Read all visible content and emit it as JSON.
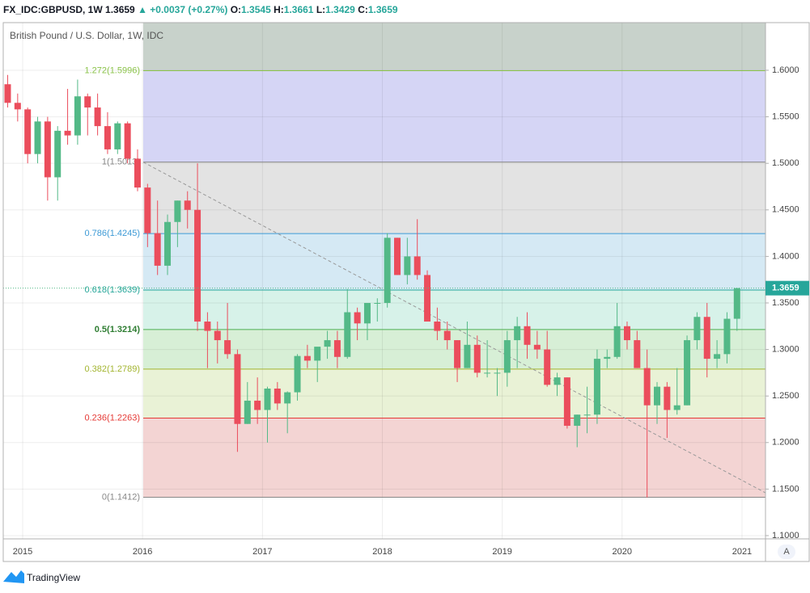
{
  "header": {
    "symbol": "FX_IDC:GBPUSD, 1W",
    "last": "1.3659",
    "change": "▲ +0.0037 (+0.27%)",
    "ohlc": [
      {
        "label": "O:",
        "value": "1.3545"
      },
      {
        "label": "H:",
        "value": "1.3661"
      },
      {
        "label": "L:",
        "value": "1.3429"
      },
      {
        "label": "C:",
        "value": "1.3659"
      }
    ]
  },
  "chart_data": {
    "type": "candlestick",
    "title": "British Pound / U.S. Dollar, 1W, IDC",
    "up_color": "#53b987",
    "down_color": "#eb4d5c",
    "xlim": [
      2014.838,
      2021.196
    ],
    "xticks": [
      2015,
      2016,
      2017,
      2018,
      2019,
      2020,
      2021
    ],
    "ylim": [
      1.0965,
      1.6512
    ],
    "yticks": [
      {
        "value": 1.1,
        "label": "1.1000"
      },
      {
        "value": 1.15,
        "label": "1.1500"
      },
      {
        "value": 1.2,
        "label": "1.2000"
      },
      {
        "value": 1.25,
        "label": "1.2500"
      },
      {
        "value": 1.3,
        "label": "1.3000"
      },
      {
        "value": 1.35,
        "label": "1.3500"
      },
      {
        "value": 1.4,
        "label": "1.4000"
      },
      {
        "value": 1.45,
        "label": "1.4500"
      },
      {
        "value": 1.5,
        "label": "1.5000"
      },
      {
        "value": 1.55,
        "label": "1.5500"
      },
      {
        "value": 1.6,
        "label": "1.6000"
      }
    ],
    "grid": true,
    "last_price": {
      "value": 1.3659,
      "label": "1.3659"
    },
    "fib_top_fill": "#c8d2cb",
    "fib_levels": [
      {
        "label": "1.272(1.5996)",
        "value": 1.5996,
        "color": "#8bc34a",
        "fill": "#d5d5f5"
      },
      {
        "label": "1(1.5013)",
        "value": 1.5013,
        "color": "#888888",
        "fill": "#e3e3e3"
      },
      {
        "label": "0.786(1.4245)",
        "value": 1.4245,
        "color": "#3d9ad6",
        "fill": "#d5e9f4"
      },
      {
        "label": "0.618(1.3639)",
        "value": 1.3639,
        "color": "#26a69a",
        "fill": "#d7f2e9"
      },
      {
        "label": "0.5(1.3214)",
        "value": 1.3214,
        "color": "#4caf50",
        "fill": "#d7efd6"
      },
      {
        "label": "0.382(1.2789)",
        "value": 1.2789,
        "color": "#a3b530",
        "fill": "#e9f2d6"
      },
      {
        "label": "0.236(1.2263)",
        "value": 1.2263,
        "color": "#e53935",
        "fill": "#f3d4d3"
      },
      {
        "label": "0(1.1412)",
        "value": 1.1412,
        "color": "#888888"
      }
    ],
    "dates": [
      "2014-11",
      "2014-12",
      "2015-01",
      "2015-02",
      "2015-03",
      "2015-04",
      "2015-05",
      "2015-06",
      "2015-07",
      "2015-08",
      "2015-09",
      "2015-10",
      "2015-11",
      "2015-12",
      "2016-01",
      "2016-02",
      "2016-03",
      "2016-04",
      "2016-05",
      "2016-06",
      "2016-07",
      "2016-08",
      "2016-09",
      "2016-10",
      "2016-11",
      "2016-12",
      "2017-01",
      "2017-02",
      "2017-03",
      "2017-04",
      "2017-05",
      "2017-06",
      "2017-07",
      "2017-08",
      "2017-09",
      "2017-10",
      "2017-11",
      "2017-12",
      "2018-01",
      "2018-02",
      "2018-03",
      "2018-04",
      "2018-05",
      "2018-06",
      "2018-07",
      "2018-08",
      "2018-09",
      "2018-10",
      "2018-11",
      "2018-12",
      "2019-01",
      "2019-02",
      "2019-03",
      "2019-04",
      "2019-05",
      "2019-06",
      "2019-07",
      "2019-08",
      "2019-09",
      "2019-10",
      "2019-11",
      "2019-12",
      "2020-01",
      "2020-02",
      "2020-03",
      "2020-04",
      "2020-05",
      "2020-06",
      "2020-07",
      "2020-08",
      "2020-09",
      "2020-10",
      "2020-11",
      "2020-12"
    ],
    "open": [
      1.585,
      1.565,
      1.558,
      1.51,
      1.545,
      1.485,
      1.535,
      1.53,
      1.572,
      1.56,
      1.54,
      1.515,
      1.543,
      1.505,
      1.474,
      1.425,
      1.39,
      1.437,
      1.46,
      1.45,
      1.33,
      1.32,
      1.31,
      1.295,
      1.22,
      1.245,
      1.235,
      1.258,
      1.242,
      1.254,
      1.293,
      1.288,
      1.303,
      1.31,
      1.292,
      1.34,
      1.328,
      1.35,
      1.35,
      1.42,
      1.38,
      1.4,
      1.38,
      1.33,
      1.32,
      1.31,
      1.28,
      1.305,
      1.275,
      1.275,
      1.275,
      1.31,
      1.325,
      1.305,
      1.3,
      1.262,
      1.27,
      1.218,
      1.23,
      1.23,
      1.29,
      1.292,
      1.325,
      1.31,
      1.28,
      1.24,
      1.26,
      1.235,
      1.24,
      1.31,
      1.335,
      1.29,
      1.295,
      1.333
    ],
    "high": [
      1.595,
      1.575,
      1.56,
      1.55,
      1.55,
      1.54,
      1.58,
      1.59,
      1.575,
      1.575,
      1.555,
      1.545,
      1.545,
      1.515,
      1.478,
      1.46,
      1.445,
      1.46,
      1.47,
      1.5,
      1.34,
      1.33,
      1.35,
      1.3,
      1.265,
      1.27,
      1.26,
      1.265,
      1.255,
      1.295,
      1.305,
      1.3,
      1.32,
      1.32,
      1.365,
      1.345,
      1.35,
      1.355,
      1.425,
      1.42,
      1.42,
      1.44,
      1.385,
      1.345,
      1.33,
      1.31,
      1.33,
      1.315,
      1.31,
      1.28,
      1.32,
      1.335,
      1.34,
      1.32,
      1.32,
      1.275,
      1.27,
      1.23,
      1.26,
      1.3,
      1.3,
      1.35,
      1.33,
      1.32,
      1.3,
      1.265,
      1.265,
      1.28,
      1.315,
      1.34,
      1.35,
      1.31,
      1.34,
      1.3661
    ],
    "low": [
      1.56,
      1.545,
      1.5,
      1.5,
      1.46,
      1.46,
      1.52,
      1.52,
      1.53,
      1.53,
      1.51,
      1.51,
      1.5,
      1.47,
      1.41,
      1.38,
      1.38,
      1.41,
      1.43,
      1.32,
      1.28,
      1.285,
      1.29,
      1.19,
      1.22,
      1.22,
      1.2,
      1.235,
      1.21,
      1.245,
      1.28,
      1.265,
      1.29,
      1.28,
      1.29,
      1.31,
      1.31,
      1.33,
      1.345,
      1.38,
      1.37,
      1.375,
      1.33,
      1.31,
      1.3,
      1.265,
      1.28,
      1.27,
      1.27,
      1.25,
      1.26,
      1.28,
      1.29,
      1.29,
      1.26,
      1.25,
      1.215,
      1.195,
      1.21,
      1.22,
      1.28,
      1.29,
      1.3,
      1.28,
      1.141,
      1.22,
      1.205,
      1.23,
      1.24,
      1.3,
      1.27,
      1.28,
      1.285,
      1.32
    ],
    "close": [
      1.565,
      1.558,
      1.51,
      1.545,
      1.485,
      1.535,
      1.53,
      1.572,
      1.56,
      1.54,
      1.515,
      1.543,
      1.505,
      1.474,
      1.425,
      1.39,
      1.437,
      1.46,
      1.45,
      1.33,
      1.32,
      1.31,
      1.295,
      1.22,
      1.245,
      1.235,
      1.258,
      1.242,
      1.254,
      1.293,
      1.288,
      1.303,
      1.31,
      1.292,
      1.34,
      1.328,
      1.35,
      1.35,
      1.42,
      1.38,
      1.4,
      1.38,
      1.33,
      1.32,
      1.31,
      1.28,
      1.305,
      1.275,
      1.275,
      1.275,
      1.31,
      1.325,
      1.305,
      1.3,
      1.262,
      1.27,
      1.218,
      1.23,
      1.23,
      1.29,
      1.292,
      1.325,
      1.31,
      1.28,
      1.24,
      1.26,
      1.235,
      1.24,
      1.31,
      1.335,
      1.29,
      1.295,
      1.333,
      1.3659
    ]
  },
  "footer": {
    "brand": "TradingView",
    "scale_button": "A"
  }
}
